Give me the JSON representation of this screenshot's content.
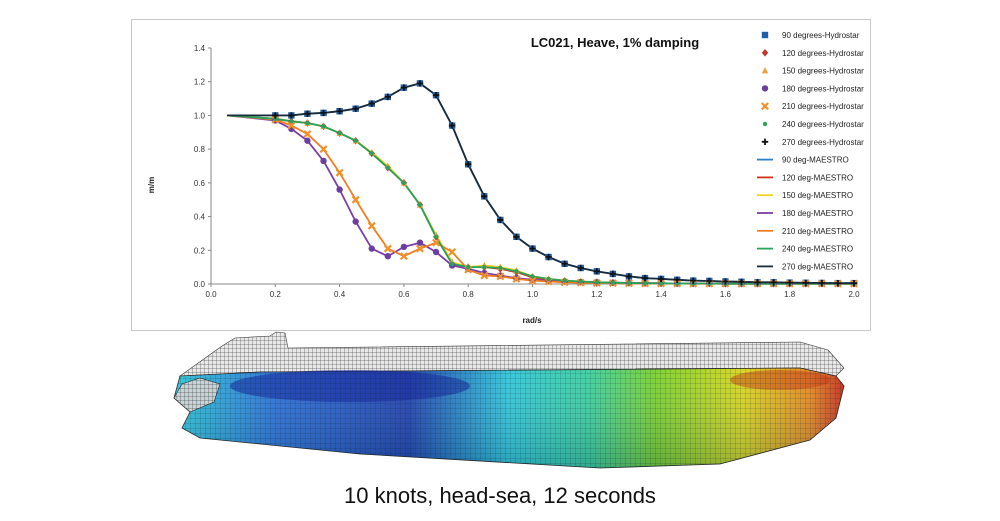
{
  "chart_data": {
    "type": "line",
    "title": "LC021, Heave, 1% damping",
    "xlabel": "rad/s",
    "ylabel": "m/m",
    "xlim": [
      0.0,
      2.0
    ],
    "ylim": [
      0.0,
      1.4
    ],
    "xticks": [
      "0.0",
      "0.2",
      "0.4",
      "0.6",
      "0.8",
      "1.0",
      "1.2",
      "1.4",
      "1.6",
      "1.8",
      "2.0"
    ],
    "yticks": [
      "0.0",
      "0.2",
      "0.4",
      "0.6",
      "0.8",
      "1.0",
      "1.2",
      "1.4"
    ],
    "x": [
      0.05,
      0.2,
      0.25,
      0.3,
      0.35,
      0.4,
      0.45,
      0.5,
      0.55,
      0.6,
      0.65,
      0.7,
      0.75,
      0.8,
      0.85,
      0.9,
      0.95,
      1.0,
      1.05,
      1.1,
      1.15,
      1.2,
      1.25,
      1.3,
      1.35,
      1.4,
      1.45,
      1.5,
      1.55,
      1.6,
      1.65,
      1.7,
      1.75,
      1.8,
      1.85,
      1.9,
      1.95,
      2.0
    ],
    "series": [
      {
        "name": "90 degrees-Hydrostar",
        "kind": "marker",
        "marker": "square",
        "color": "#1f5fa8",
        "ref": "s90"
      },
      {
        "name": "120 degrees-Hydrostar",
        "kind": "marker",
        "marker": "diamond",
        "color": "#c0392b",
        "ref": "s120"
      },
      {
        "name": "150 degrees-Hydrostar",
        "kind": "marker",
        "marker": "triangle",
        "color": "#e8a33a",
        "ref": "s150"
      },
      {
        "name": "180 degrees-Hydrostar",
        "kind": "marker",
        "marker": "circle",
        "color": "#6a3fa0",
        "ref": "s180"
      },
      {
        "name": "210 degrees-Hydrostar",
        "kind": "marker",
        "marker": "x",
        "color": "#f0902a",
        "ref": "s210"
      },
      {
        "name": "240 degrees-Hydrostar",
        "kind": "marker",
        "marker": "dot",
        "color": "#2ea05a",
        "ref": "s240"
      },
      {
        "name": "270 degrees-Hydrostar",
        "kind": "marker",
        "marker": "plus",
        "color": "#111111",
        "ref": "s270"
      },
      {
        "name": "90 deg-MAESTRO",
        "kind": "line",
        "color": "#2f7fd0",
        "ref": "s90"
      },
      {
        "name": "120 deg-MAESTRO",
        "kind": "line",
        "color": "#d4301c",
        "ref": "s120"
      },
      {
        "name": "150 deg-MAESTRO",
        "kind": "line",
        "color": "#f2d31b",
        "ref": "s150"
      },
      {
        "name": "180 deg-MAESTRO",
        "kind": "line",
        "color": "#7a3fa8",
        "ref": "s180"
      },
      {
        "name": "210 deg-MAESTRO",
        "kind": "line",
        "color": "#f07d1f",
        "ref": "s210"
      },
      {
        "name": "240 deg-MAESTRO",
        "kind": "line",
        "color": "#27a35a",
        "ref": "s240"
      },
      {
        "name": "270 deg-MAESTRO",
        "kind": "line",
        "color": "#1c2b3a",
        "ref": "s270"
      }
    ],
    "values": {
      "s90": [
        1.0,
        1.0,
        1.0,
        1.01,
        1.015,
        1.025,
        1.04,
        1.07,
        1.11,
        1.165,
        1.19,
        1.12,
        0.94,
        0.71,
        0.52,
        0.38,
        0.28,
        0.21,
        0.16,
        0.12,
        0.095,
        0.075,
        0.06,
        0.045,
        0.035,
        0.03,
        0.025,
        0.02,
        0.018,
        0.015,
        0.013,
        0.01,
        0.01,
        0.008,
        0.007,
        0.006,
        0.005,
        0.005
      ],
      "s120": [
        1.0,
        0.98,
        0.965,
        0.955,
        0.935,
        0.895,
        0.85,
        0.775,
        0.69,
        0.6,
        0.47,
        0.28,
        0.12,
        0.1,
        0.1,
        0.09,
        0.07,
        0.04,
        0.025,
        0.018,
        0.012,
        0.01,
        0.008,
        0.006,
        0.005,
        0.004,
        0.003,
        0.003,
        0.003,
        0.002,
        0.002,
        0.002,
        0.002,
        0.002,
        0.002,
        0.002,
        0.002,
        0.002
      ],
      "s150": [
        1.0,
        0.98,
        0.965,
        0.955,
        0.935,
        0.895,
        0.85,
        0.78,
        0.7,
        0.6,
        0.47,
        0.29,
        0.13,
        0.1,
        0.11,
        0.1,
        0.08,
        0.045,
        0.03,
        0.02,
        0.015,
        0.01,
        0.008,
        0.006,
        0.005,
        0.004,
        0.003,
        0.003,
        0.003,
        0.002,
        0.002,
        0.002,
        0.002,
        0.002,
        0.002,
        0.002,
        0.002,
        0.002
      ],
      "s180": [
        1.0,
        0.97,
        0.92,
        0.85,
        0.73,
        0.56,
        0.37,
        0.21,
        0.165,
        0.22,
        0.245,
        0.19,
        0.11,
        0.09,
        0.065,
        0.05,
        0.035,
        0.025,
        0.02,
        0.015,
        0.012,
        0.01,
        0.008,
        0.006,
        0.005,
        0.004,
        0.003,
        0.003,
        0.003,
        0.002,
        0.002,
        0.002,
        0.002,
        0.002,
        0.002,
        0.002,
        0.002,
        0.002
      ],
      "s210": [
        1.0,
        0.975,
        0.94,
        0.89,
        0.8,
        0.66,
        0.5,
        0.345,
        0.21,
        0.165,
        0.21,
        0.245,
        0.19,
        0.085,
        0.05,
        0.045,
        0.03,
        0.02,
        0.015,
        0.01,
        0.008,
        0.006,
        0.005,
        0.004,
        0.003,
        0.003,
        0.003,
        0.002,
        0.002,
        0.002,
        0.002,
        0.002,
        0.002,
        0.002,
        0.002,
        0.002,
        0.002,
        0.002
      ],
      "s240": [
        1.0,
        0.98,
        0.965,
        0.955,
        0.935,
        0.895,
        0.85,
        0.775,
        0.69,
        0.6,
        0.47,
        0.28,
        0.12,
        0.1,
        0.1,
        0.095,
        0.075,
        0.045,
        0.03,
        0.02,
        0.015,
        0.01,
        0.008,
        0.006,
        0.005,
        0.004,
        0.003,
        0.003,
        0.003,
        0.002,
        0.002,
        0.002,
        0.002,
        0.002,
        0.002,
        0.002,
        0.002,
        0.002
      ],
      "s270": [
        1.0,
        1.0,
        1.0,
        1.01,
        1.015,
        1.025,
        1.04,
        1.07,
        1.11,
        1.165,
        1.19,
        1.12,
        0.94,
        0.71,
        0.52,
        0.38,
        0.28,
        0.21,
        0.16,
        0.12,
        0.095,
        0.075,
        0.06,
        0.045,
        0.035,
        0.03,
        0.025,
        0.02,
        0.018,
        0.015,
        0.013,
        0.01,
        0.01,
        0.008,
        0.007,
        0.006,
        0.005,
        0.005
      ]
    },
    "grid": false,
    "legend": "right"
  },
  "figure": {
    "caption": "10 knots, head-sea, 12 seconds",
    "hull_colors": [
      "#1a2f9c",
      "#2a5bd0",
      "#27c4d8",
      "#36d0a8",
      "#6fcf2e",
      "#e2d51a",
      "#e88a1c",
      "#cc2a1a"
    ]
  }
}
